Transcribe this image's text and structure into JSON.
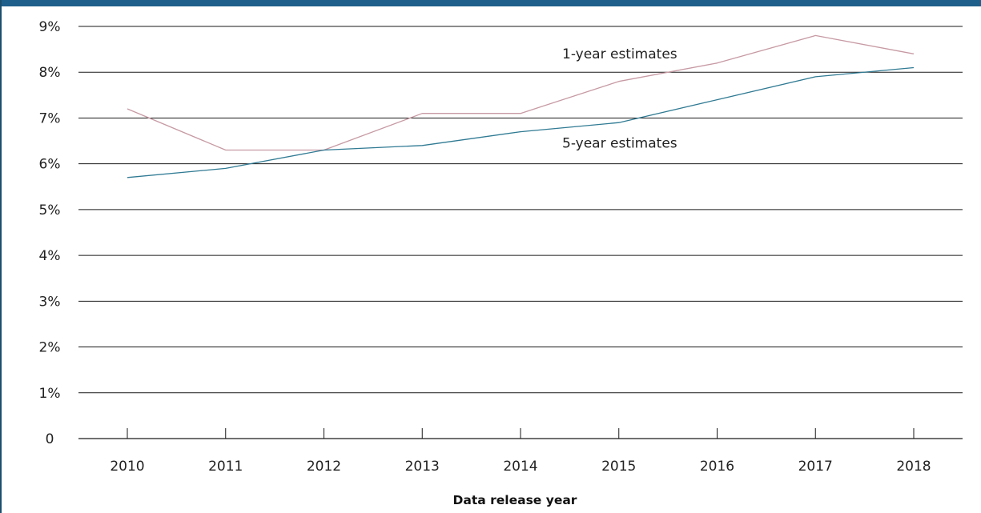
{
  "chart_data": {
    "type": "line",
    "title": "",
    "xlabel": "Data release year",
    "ylabel": "",
    "ylim": [
      0,
      9
    ],
    "y_ticks": [
      {
        "value": 0,
        "label": "0"
      },
      {
        "value": 1,
        "label": "1%"
      },
      {
        "value": 2,
        "label": "2%"
      },
      {
        "value": 3,
        "label": "3%"
      },
      {
        "value": 4,
        "label": "4%"
      },
      {
        "value": 5,
        "label": "5%"
      },
      {
        "value": 6,
        "label": "6%"
      },
      {
        "value": 7,
        "label": "7%"
      },
      {
        "value": 8,
        "label": "8%"
      },
      {
        "value": 9,
        "label": "9%"
      }
    ],
    "grid": "horizontal",
    "x": [
      "2010",
      "2011",
      "2012",
      "2013",
      "2014",
      "2015",
      "2016",
      "2017",
      "2018"
    ],
    "series": [
      {
        "name": "1-year estimates",
        "color": "#c79aa4",
        "values": [
          7.2,
          6.3,
          6.3,
          7.1,
          7.1,
          7.8,
          8.2,
          8.8,
          8.4
        ]
      },
      {
        "name": "5-year estimates",
        "color": "#2f7a93",
        "values": [
          5.7,
          5.9,
          6.3,
          6.4,
          6.7,
          6.9,
          7.4,
          7.9,
          8.1
        ]
      }
    ],
    "annotations": [
      {
        "text": "1-year estimates",
        "series": 0,
        "near_x": "2014",
        "y": 8.3
      },
      {
        "text": "5-year estimates",
        "series": 1,
        "near_x": "2014",
        "y": 6.35
      }
    ]
  },
  "colors": {
    "accent_bar": "#1f5f8b",
    "grid": "#1a1a1a",
    "text": "#222222"
  }
}
